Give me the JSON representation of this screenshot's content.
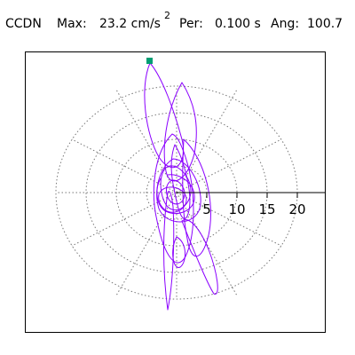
{
  "header": {
    "station": "CCDN",
    "max_label": "Max:",
    "max_value": "23.2 cm/s",
    "max_exponent": "2",
    "period_label": "Per:",
    "period_value": "0.100 s",
    "angle_label": "Ang:",
    "angle_value": "100.7"
  },
  "plot": {
    "radial_ticks": [
      "5",
      "10",
      "15",
      "20"
    ],
    "grid_style": "dotted concentric ellipses with radial spokes",
    "trace_color": "#8B00FF",
    "marker_color": "#009E73",
    "axis_color": "#000000"
  }
}
